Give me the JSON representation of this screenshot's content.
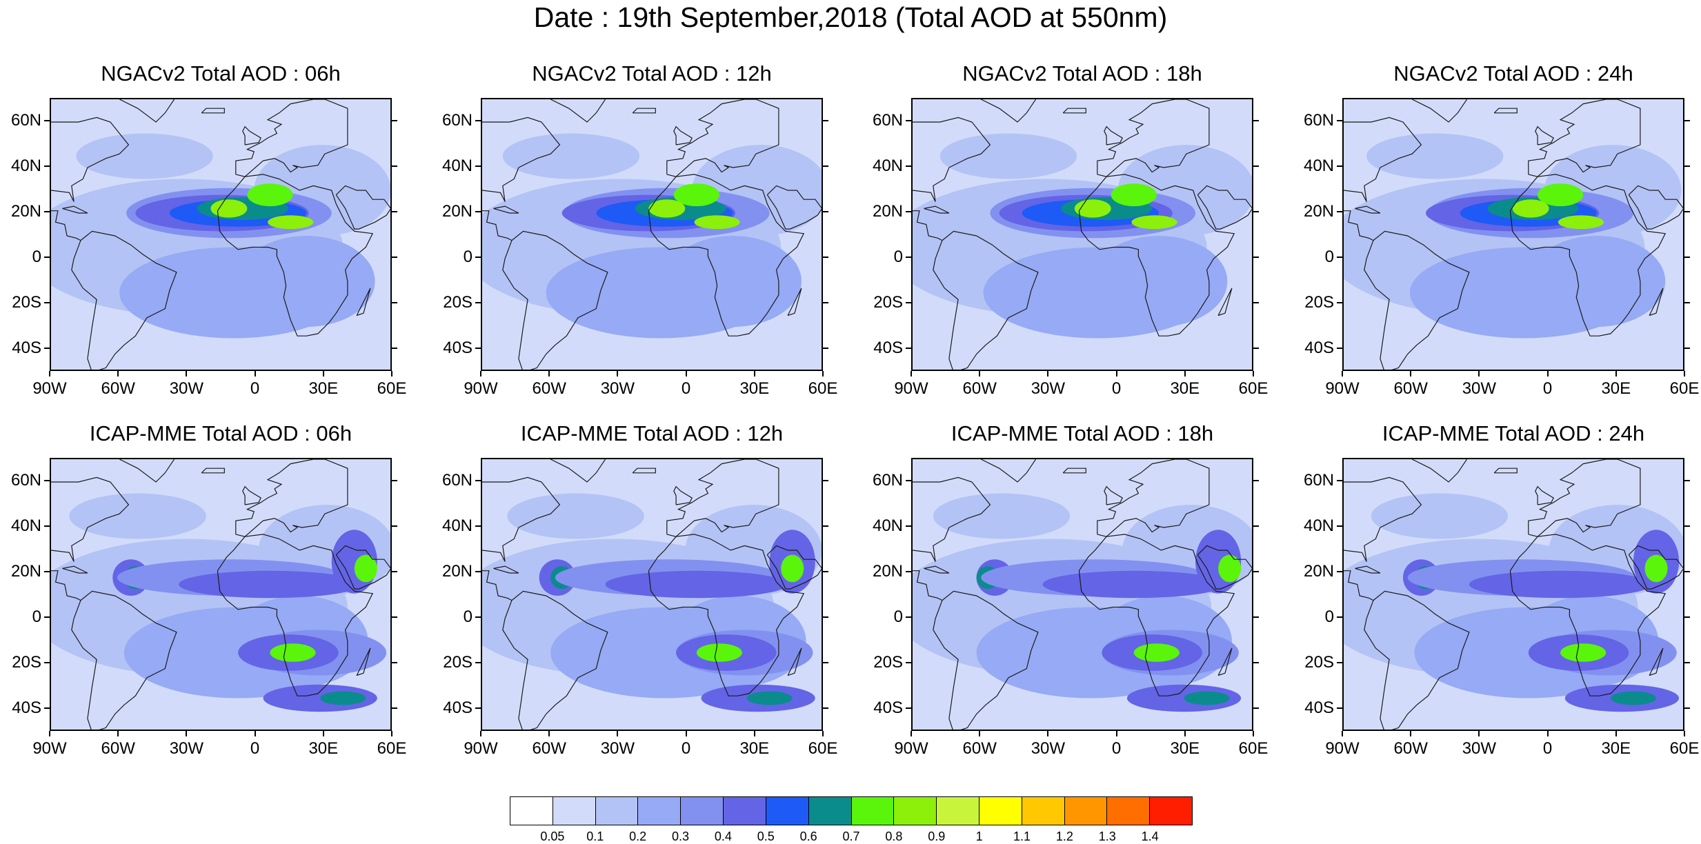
{
  "figure": {
    "title": "Date : 19th September,2018 (Total AOD at 550nm)"
  },
  "panels": [
    {
      "title": "NGACv2 Total AOD : 06h",
      "model": "NGACv2",
      "hour": "06h"
    },
    {
      "title": "NGACv2 Total AOD : 12h",
      "model": "NGACv2",
      "hour": "12h"
    },
    {
      "title": "NGACv2 Total AOD : 18h",
      "model": "NGACv2",
      "hour": "18h"
    },
    {
      "title": "NGACv2 Total AOD : 24h",
      "model": "NGACv2",
      "hour": "24h"
    },
    {
      "title": "ICAP-MME Total AOD : 06h",
      "model": "ICAP-MME",
      "hour": "06h"
    },
    {
      "title": "ICAP-MME Total AOD : 12h",
      "model": "ICAP-MME",
      "hour": "12h"
    },
    {
      "title": "ICAP-MME Total AOD : 18h",
      "model": "ICAP-MME",
      "hour": "18h"
    },
    {
      "title": "ICAP-MME Total AOD : 24h",
      "model": "ICAP-MME",
      "hour": "24h"
    }
  ],
  "axes": {
    "lat_labels": [
      "60N",
      "40N",
      "20N",
      "0",
      "20S",
      "40S"
    ],
    "lat_values": [
      60,
      40,
      20,
      0,
      -20,
      -40
    ],
    "lon_labels": [
      "90W",
      "60W",
      "30W",
      "0",
      "30E",
      "60E"
    ],
    "lon_values": [
      -90,
      -60,
      -30,
      0,
      30,
      60
    ],
    "lat_range": [
      -50,
      70
    ],
    "lon_range": [
      -90,
      60
    ]
  },
  "colorbar": {
    "labels": [
      "0.05",
      "0.1",
      "0.2",
      "0.3",
      "0.4",
      "0.5",
      "0.6",
      "0.7",
      "0.8",
      "0.9",
      "1",
      "1.1",
      "1.2",
      "1.3",
      "1.4"
    ],
    "colors": [
      "#ffffff",
      "#d2dcfa",
      "#b4c3f5",
      "#96aaf5",
      "#8291f0",
      "#6464e6",
      "#1e5af5",
      "#0a8c8c",
      "#5af50a",
      "#8cf00a",
      "#c8f53c",
      "#ffff00",
      "#ffc800",
      "#ff9600",
      "#ff6e00",
      "#ff1e00"
    ]
  },
  "colors": {
    "land_outline": "#1a1a1a",
    "background": "#ffffff"
  }
}
